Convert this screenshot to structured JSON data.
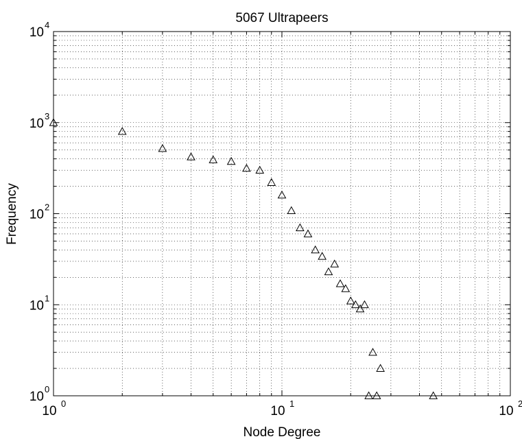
{
  "chart_data": {
    "type": "scatter",
    "title": "5067 Ultrapeers",
    "xlabel": "Node Degree",
    "ylabel": "Frequency",
    "xscale": "log",
    "yscale": "log",
    "xlim": [
      1,
      100
    ],
    "ylim": [
      1,
      10000
    ],
    "grid": true,
    "marker": "triangle-up",
    "x_ticks": [
      {
        "base": "10",
        "exp": "0"
      },
      {
        "base": "10",
        "exp": "1"
      },
      {
        "base": "10",
        "exp": "2"
      }
    ],
    "y_ticks": [
      {
        "base": "10",
        "exp": "0"
      },
      {
        "base": "10",
        "exp": "1"
      },
      {
        "base": "10",
        "exp": "2"
      },
      {
        "base": "10",
        "exp": "3"
      },
      {
        "base": "10",
        "exp": "4"
      }
    ],
    "series": [
      {
        "points": [
          [
            1,
            1000
          ],
          [
            2,
            800
          ],
          [
            3,
            520
          ],
          [
            4,
            420
          ],
          [
            5,
            390
          ],
          [
            6,
            375
          ],
          [
            7,
            315
          ],
          [
            8,
            300
          ],
          [
            9,
            220
          ],
          [
            10,
            160
          ],
          [
            11,
            108
          ],
          [
            12,
            70
          ],
          [
            13,
            60
          ],
          [
            14,
            40
          ],
          [
            15,
            34
          ],
          [
            16,
            23
          ],
          [
            17,
            28
          ],
          [
            18,
            17
          ],
          [
            19,
            15
          ],
          [
            20,
            11
          ],
          [
            21,
            10
          ],
          [
            22,
            9
          ],
          [
            23,
            10
          ],
          [
            24,
            1
          ],
          [
            25,
            3
          ],
          [
            26,
            1
          ],
          [
            27,
            2
          ],
          [
            46,
            1
          ]
        ]
      }
    ]
  }
}
